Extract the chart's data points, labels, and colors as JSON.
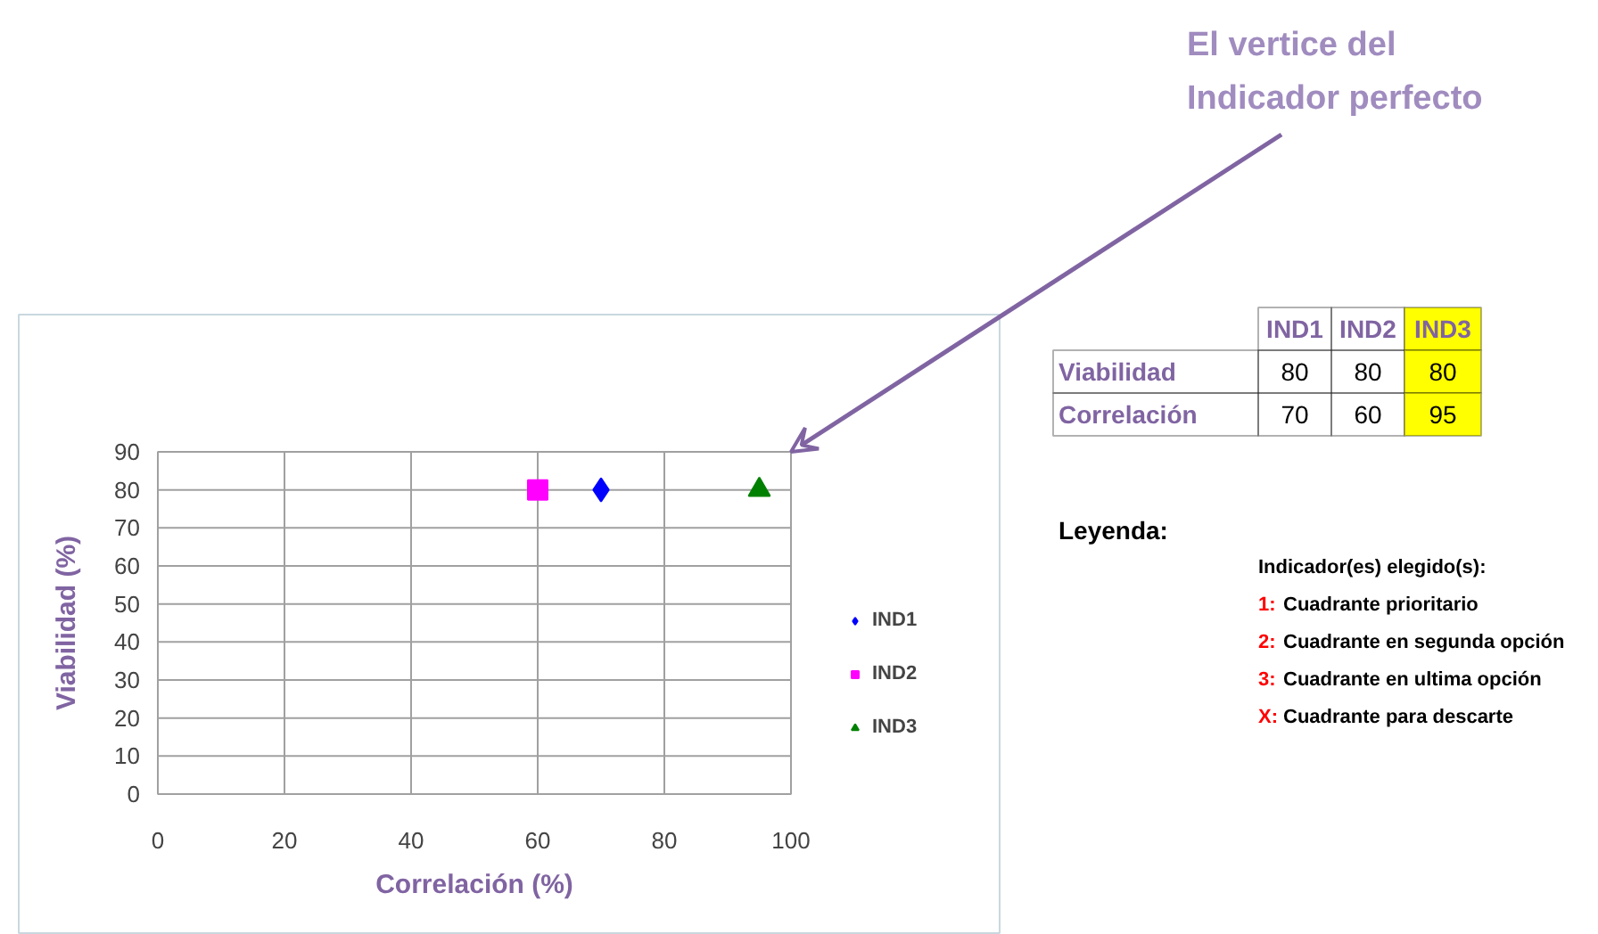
{
  "chart_data": {
    "type": "scatter",
    "xlabel": "Correlación (%)",
    "ylabel": "Viabilidad (%)",
    "xlim": [
      0,
      100
    ],
    "ylim": [
      0,
      90
    ],
    "xticks": [
      0,
      20,
      40,
      60,
      80,
      100
    ],
    "yticks": [
      0,
      10,
      20,
      30,
      40,
      50,
      60,
      70,
      80,
      90
    ],
    "grid": true,
    "legend": "right",
    "series": [
      {
        "name": "IND1",
        "color": "#0000ff",
        "marker": "diamond",
        "x": [
          70
        ],
        "values": [
          80
        ]
      },
      {
        "name": "IND2",
        "color": "#ff00ff",
        "marker": "square",
        "x": [
          60
        ],
        "values": [
          80
        ]
      },
      {
        "name": "IND3",
        "color": "#008000",
        "marker": "triangle",
        "x": [
          95
        ],
        "values": [
          80
        ]
      }
    ],
    "annotations": [
      "El vertice del\nIndicador perfecto",
      "Viabilidad",
      "Correlación",
      "Leyenda:",
      "Indicador(es) elegido(s):",
      "1: Cuadrante prioritario",
      "2: Cuadrante en segunda opción",
      "3: Cuadrante en ultima opción",
      "X: Cuadrante para descarte",
      "80",
      "80",
      "80",
      "70",
      "60",
      "95"
    ]
  }
}
